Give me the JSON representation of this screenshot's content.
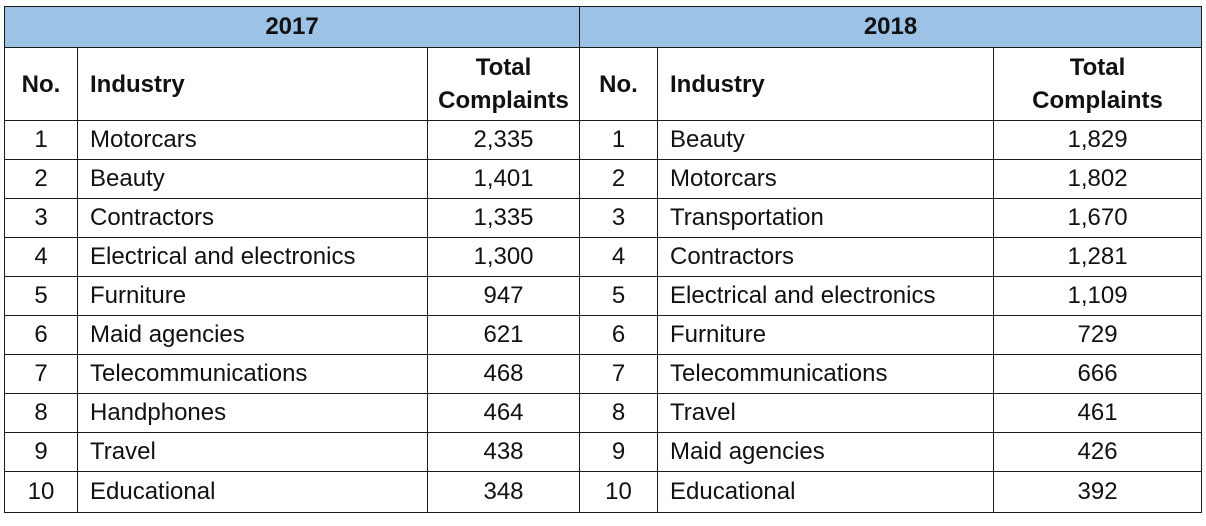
{
  "years": [
    "2017",
    "2018"
  ],
  "headers": {
    "no": "No.",
    "industry": "Industry",
    "total_line1": "Total",
    "total_line2": "Complaints"
  },
  "rows_2017": [
    {
      "no": "1",
      "industry": "Motorcars",
      "total": "2,335"
    },
    {
      "no": "2",
      "industry": "Beauty",
      "total": "1,401"
    },
    {
      "no": "3",
      "industry": "Contractors",
      "total": "1,335"
    },
    {
      "no": "4",
      "industry": "Electrical and electronics",
      "total": "1,300"
    },
    {
      "no": "5",
      "industry": "Furniture",
      "total": "947"
    },
    {
      "no": "6",
      "industry": "Maid agencies",
      "total": "621"
    },
    {
      "no": "7",
      "industry": "Telecommunications",
      "total": "468"
    },
    {
      "no": "8",
      "industry": "Handphones",
      "total": "464"
    },
    {
      "no": "9",
      "industry": "Travel",
      "total": "438"
    },
    {
      "no": "10",
      "industry": "Educational",
      "total": "348"
    }
  ],
  "rows_2018": [
    {
      "no": "1",
      "industry": "Beauty",
      "total": "1,829"
    },
    {
      "no": "2",
      "industry": "Motorcars",
      "total": "1,802"
    },
    {
      "no": "3",
      "industry": "Transportation",
      "total": "1,670"
    },
    {
      "no": "4",
      "industry": "Contractors",
      "total": "1,281"
    },
    {
      "no": "5",
      "industry": "Electrical and electronics",
      "total": "1,109"
    },
    {
      "no": "6",
      "industry": "Furniture",
      "total": "729"
    },
    {
      "no": "7",
      "industry": "Telecommunications",
      "total": "666"
    },
    {
      "no": "8",
      "industry": "Travel",
      "total": "461"
    },
    {
      "no": "9",
      "industry": "Maid agencies",
      "total": "426"
    },
    {
      "no": "10",
      "industry": "Educational",
      "total": "392"
    }
  ]
}
